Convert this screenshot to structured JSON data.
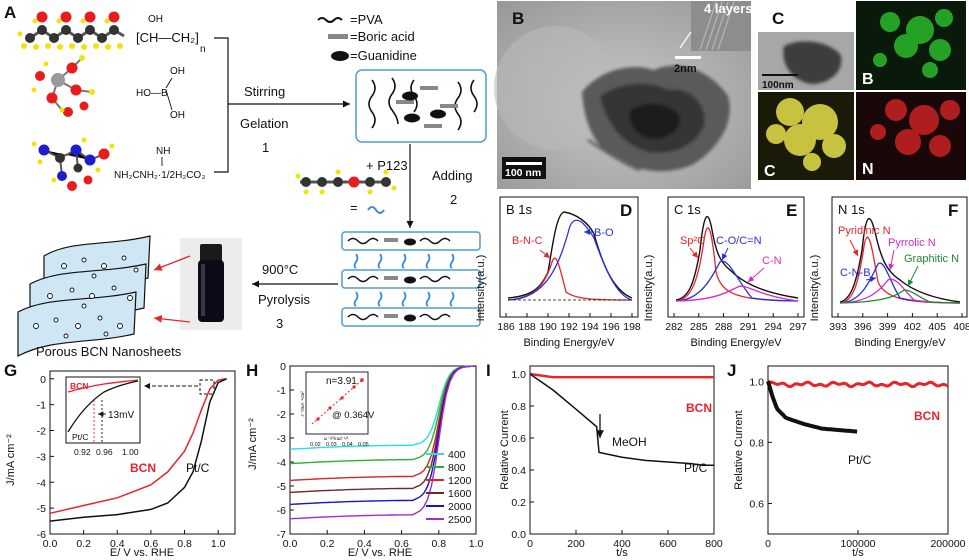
{
  "schematic": {
    "panel_label": "A",
    "legend": {
      "pva": "=PVA",
      "boric": "=Boric acid",
      "guanidine": "=Guanidine"
    },
    "formula_oh": "OH",
    "formula_pva": "[CH—CH₂]",
    "formula_n": "n",
    "formula_boric_top": "OH",
    "formula_boric_mid": "HO—B",
    "formula_boric_bottom": "OH",
    "formula_nh": "NH",
    "formula_guanidine": "NH₂CNH₂·1/2H₂CO₃",
    "step1_a": "Stirring",
    "step1_b": "Gelation",
    "step1_num": "1",
    "plus_p123": "+ P123",
    "step2_a": "Adding",
    "step2_num": "2",
    "step3_a": "900°C",
    "step3_b": "Pyrolysis",
    "step3_num": "3",
    "product": "Porous BCN Nanosheets"
  },
  "tem": {
    "panel_label": "B",
    "inset_label": "4 layers",
    "inset_scale": "2nm",
    "scale": "100 nm"
  },
  "eds": {
    "panel_label": "C",
    "scale": "100nm",
    "map_b": "B",
    "map_c": "C",
    "map_n": "N"
  },
  "xps": {
    "ylabel": "Intensity(a.u.)",
    "xlabel": "Binding Energy/eV",
    "panels": [
      {
        "panel_label": "D",
        "title": "B 1s",
        "ticks": [
          "186",
          "188",
          "190",
          "192",
          "194",
          "196",
          "198"
        ],
        "peaks": [
          "B-N-C",
          "B-O"
        ]
      },
      {
        "panel_label": "E",
        "title": "C 1s",
        "ticks": [
          "282",
          "285",
          "288",
          "291",
          "294",
          "297"
        ],
        "peaks": [
          "Sp²C",
          "C-O/C=N",
          "C-N"
        ]
      },
      {
        "panel_label": "F",
        "title": "N 1s",
        "ticks": [
          "393",
          "396",
          "399",
          "402",
          "405",
          "408"
        ],
        "peaks": [
          "Pyridinic N",
          "C-N-B",
          "Pyrrolic N",
          "Graphitic N"
        ]
      }
    ]
  },
  "panelG": {
    "panel_label": "G",
    "ylabel": "J/mA cm⁻²",
    "xlabel": "E/ V vs. RHE",
    "xticks": [
      "0.0",
      "0.2",
      "0.4",
      "0.6",
      "0.8",
      "1.0"
    ],
    "yticks": [
      "0",
      "-1",
      "-2",
      "-3",
      "-4",
      "-5",
      "-6"
    ],
    "series": [
      {
        "name": "BCN",
        "color": "#e8242a"
      },
      {
        "name": "Pt/C",
        "color": "#111111"
      }
    ],
    "inset": {
      "shift": "13mV",
      "series_bcn": "BCN",
      "series_ptc": "Pt/C",
      "xticks": [
        "0.92",
        "0.96",
        "1.00"
      ]
    }
  },
  "panelH": {
    "panel_label": "H",
    "ylabel": "J/mA cm⁻²",
    "xlabel": "E/ V vs. RHE",
    "xticks": [
      "0.0",
      "0.2",
      "0.4",
      "0.6",
      "0.8",
      "1.0"
    ],
    "yticks": [
      "0",
      "-1",
      "-2",
      "-3",
      "-4",
      "-5",
      "-6",
      "-7"
    ],
    "rpm": [
      {
        "label": "400",
        "color": "#27e0e0"
      },
      {
        "label": "800",
        "color": "#2ab32a"
      },
      {
        "label": "1200",
        "color": "#d4262b"
      },
      {
        "label": "1600",
        "color": "#6d2a2a"
      },
      {
        "label": "2000",
        "color": "#1515c8"
      },
      {
        "label": "2500",
        "color": "#a52ad4"
      }
    ],
    "inset": {
      "n_label": "n=3.91",
      "potential": "@ 0.364V",
      "ylabel": "J⁻¹/mA⁻¹cm²",
      "xlabel": "ω⁻¹/²/rad⁻¹/²",
      "xticks": [
        "0.02",
        "0.03",
        "0.04",
        "0.05"
      ]
    }
  },
  "panelI": {
    "panel_label": "I",
    "ylabel": "Relative Current",
    "xlabel": "t/s",
    "xticks": [
      "0",
      "200",
      "400",
      "600",
      "800"
    ],
    "yticks": [
      "1.0",
      "0.8",
      "0.6",
      "0.4",
      "0.2",
      "0.0"
    ],
    "annotation": "MeOH",
    "series": [
      {
        "name": "BCN",
        "color": "#e8242a"
      },
      {
        "name": "Pt/C",
        "color": "#111111"
      }
    ]
  },
  "panelJ": {
    "panel_label": "J",
    "ylabel": "Relative Current",
    "xlabel": "t/s",
    "xticks": [
      "0",
      "100000",
      "200000"
    ],
    "yticks": [
      "1.0",
      "0.8",
      "0.6"
    ],
    "series": [
      {
        "name": "BCN",
        "color": "#e8242a"
      },
      {
        "name": "Pt/C",
        "color": "#111111"
      }
    ]
  },
  "chart_data": [
    {
      "type": "line",
      "title": "G",
      "xlabel": "E/ V vs. RHE",
      "ylabel": "J/mA cm-2",
      "xlim": [
        0,
        1.1
      ],
      "ylim": [
        -6,
        0.3
      ],
      "series": [
        {
          "name": "BCN",
          "x": [
            0.0,
            0.2,
            0.4,
            0.6,
            0.7,
            0.8,
            0.85,
            0.9,
            0.95,
            1.0,
            1.05
          ],
          "values": [
            -5.2,
            -4.9,
            -4.6,
            -4.1,
            -3.6,
            -2.8,
            -2.1,
            -1.2,
            -0.4,
            -0.05,
            0
          ]
        },
        {
          "name": "Pt/C",
          "x": [
            0.0,
            0.2,
            0.4,
            0.6,
            0.7,
            0.8,
            0.85,
            0.9,
            0.95,
            1.0,
            1.05
          ],
          "values": [
            -5.5,
            -5.35,
            -5.25,
            -5.05,
            -4.8,
            -4.2,
            -3.6,
            -2.4,
            -0.9,
            -0.15,
            0
          ]
        }
      ]
    },
    {
      "type": "line",
      "title": "H",
      "xlabel": "E/ V vs. RHE",
      "ylabel": "J/mA cm-2",
      "xlim": [
        0,
        1.0
      ],
      "ylim": [
        -7,
        0
      ],
      "series": [
        {
          "name": "400",
          "plateau": -3.3
        },
        {
          "name": "800",
          "plateau": -3.9
        },
        {
          "name": "1200",
          "plateau": -4.6
        },
        {
          "name": "1600",
          "plateau": -5.1
        },
        {
          "name": "2000",
          "plateau": -5.6
        },
        {
          "name": "2500",
          "plateau": -6.2
        }
      ]
    },
    {
      "type": "line",
      "title": "I",
      "xlabel": "t/s",
      "ylabel": "Relative Current",
      "xlim": [
        0,
        800
      ],
      "ylim": [
        0,
        1.05
      ],
      "series": [
        {
          "name": "BCN",
          "x": [
            0,
            100,
            200,
            300,
            400,
            500,
            600,
            700,
            800
          ],
          "values": [
            1.0,
            0.98,
            0.98,
            0.98,
            0.98,
            0.98,
            0.98,
            0.98,
            0.98
          ]
        },
        {
          "name": "Pt/C",
          "x": [
            0,
            100,
            200,
            290,
            300,
            400,
            500,
            600,
            700,
            750,
            800
          ],
          "values": [
            1.0,
            0.9,
            0.78,
            0.67,
            0.51,
            0.48,
            0.46,
            0.45,
            0.44,
            0.43,
            0.43
          ]
        }
      ]
    },
    {
      "type": "line",
      "title": "J",
      "xlabel": "t/s",
      "ylabel": "Relative Current",
      "xlim": [
        0,
        200000
      ],
      "ylim": [
        0.5,
        1.05
      ],
      "series": [
        {
          "name": "BCN",
          "x": [
            0,
            50000,
            100000,
            150000,
            200000
          ],
          "values": [
            1.0,
            0.99,
            0.99,
            0.99,
            0.99
          ]
        },
        {
          "name": "Pt/C",
          "x": [
            0,
            5000,
            10000,
            20000,
            40000,
            60000,
            80000,
            100000
          ],
          "values": [
            1.0,
            0.95,
            0.91,
            0.88,
            0.86,
            0.845,
            0.84,
            0.835
          ]
        }
      ]
    }
  ]
}
